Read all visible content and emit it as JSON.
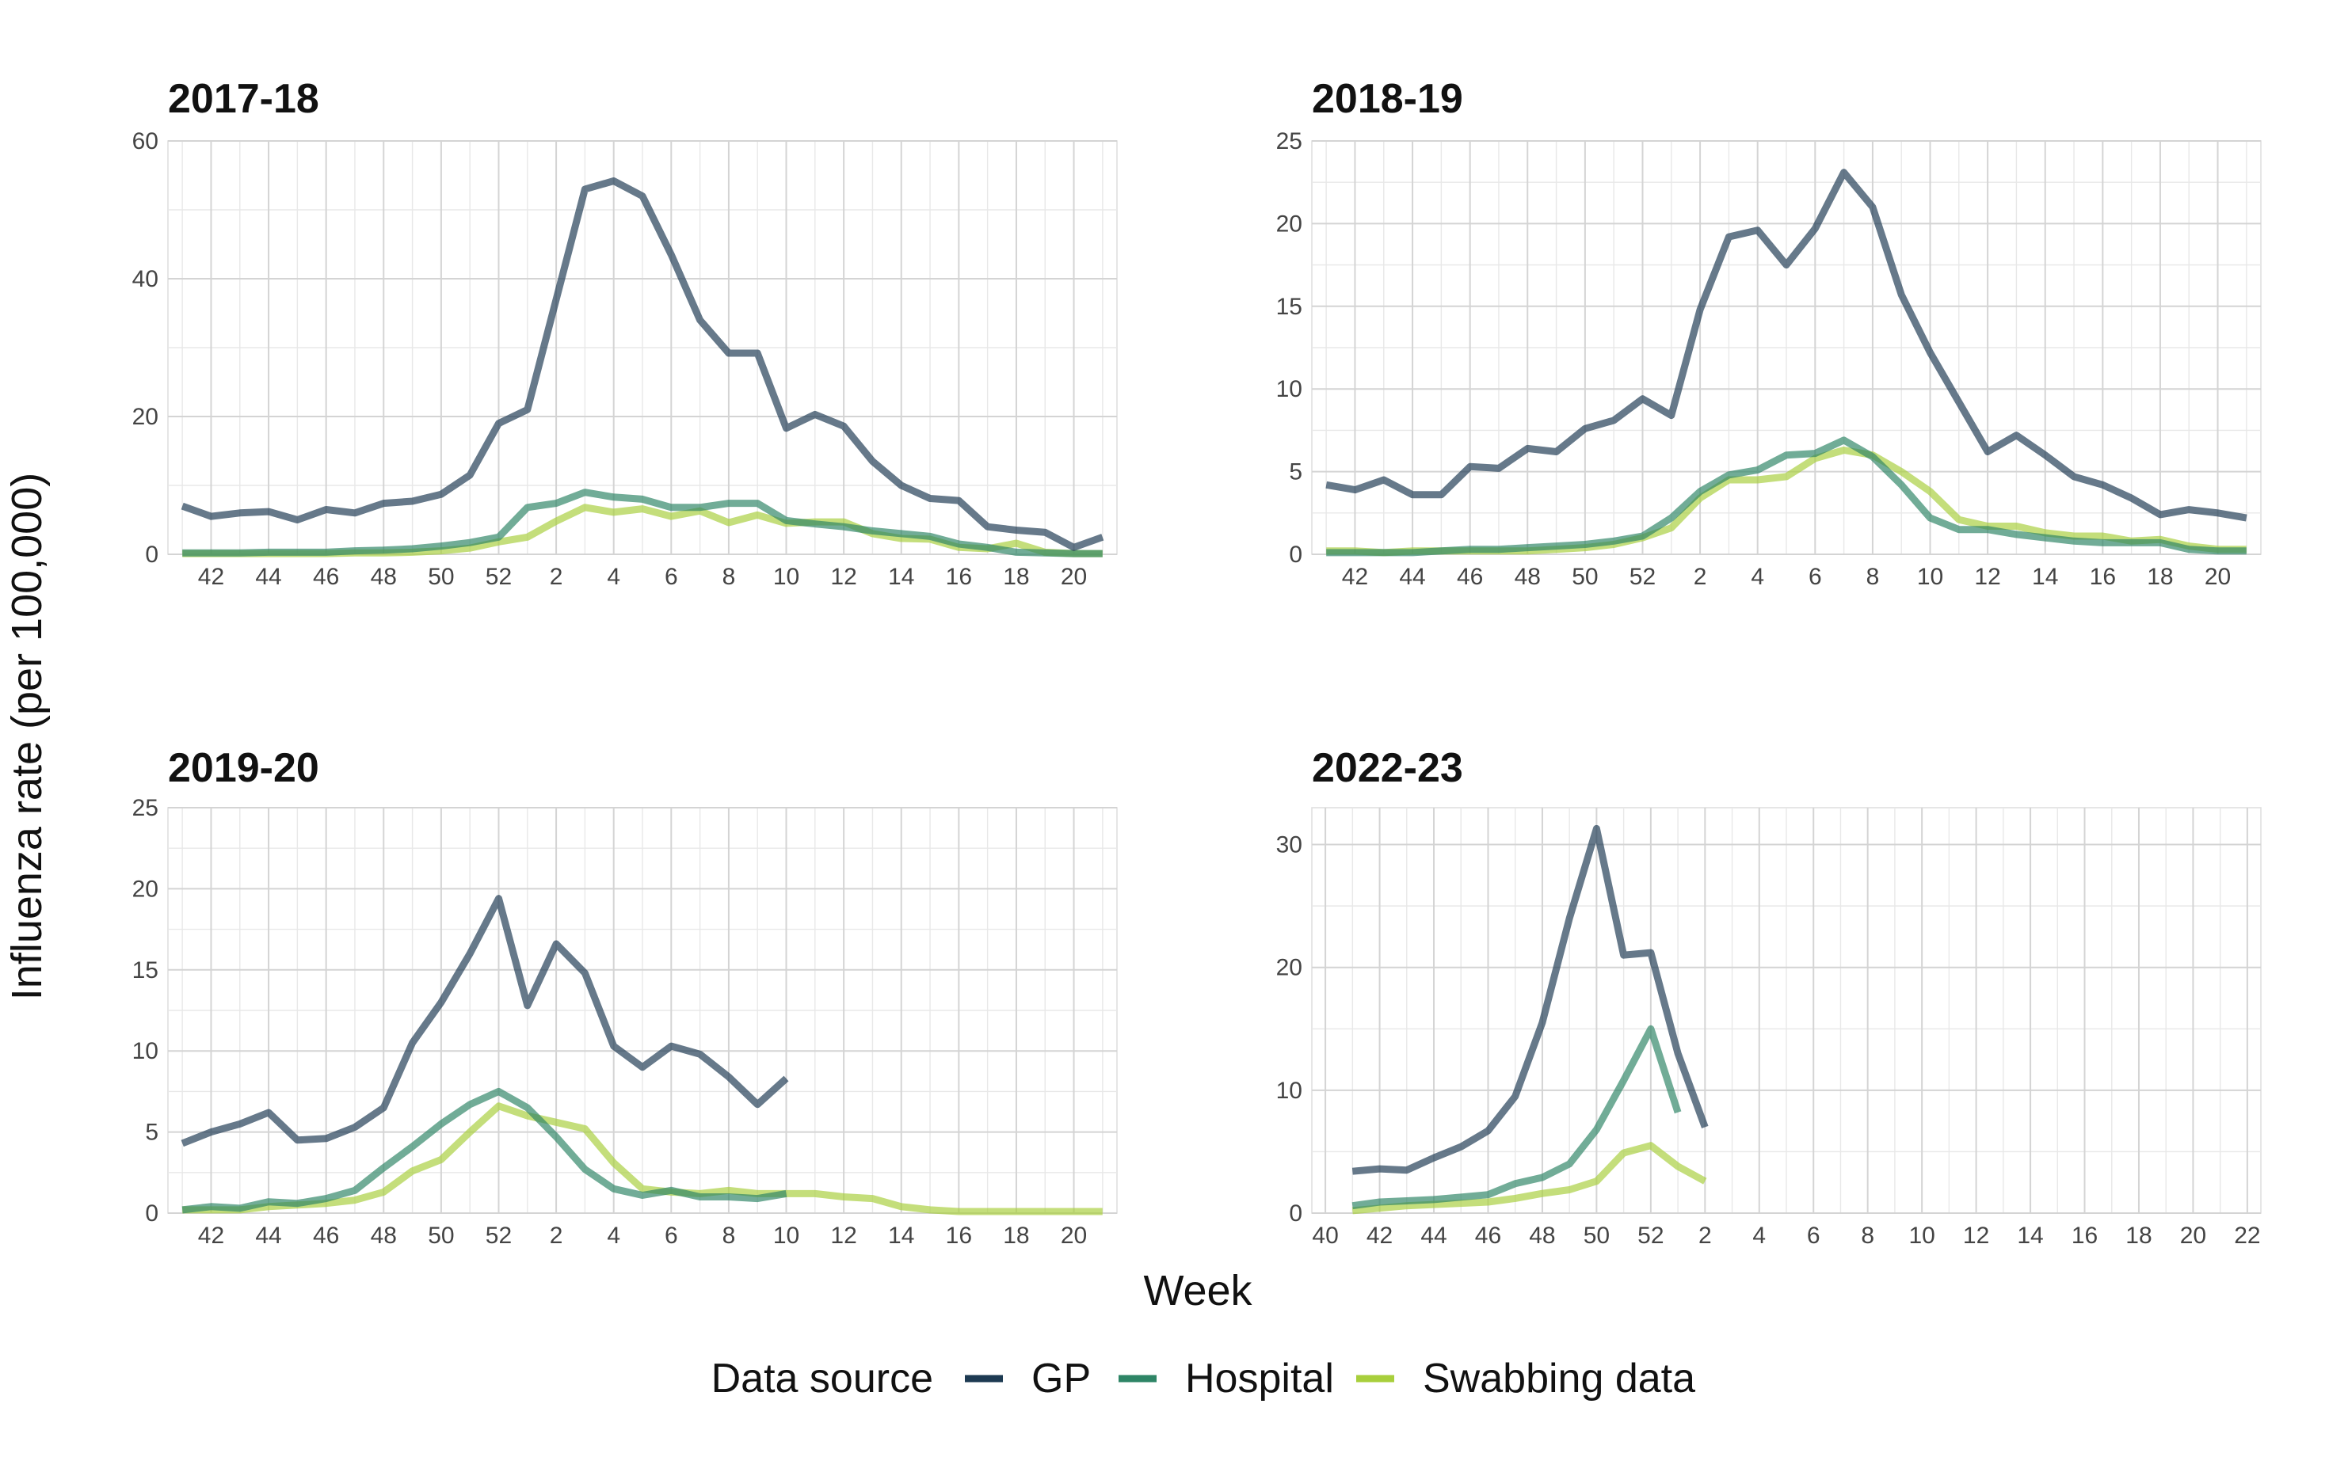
{
  "chart_data": {
    "type": "line",
    "xlabel": "Week",
    "ylabel": "Influenza rate (per 100,000)",
    "legend": {
      "title": "Data source",
      "placement": "bottom",
      "entries": [
        {
          "name": "GP",
          "color": "#1d3a52"
        },
        {
          "name": "Hospital",
          "color": "#2e8566"
        },
        {
          "name": "Swabbing data",
          "color": "#a8cf3c"
        }
      ]
    },
    "panels": [
      {
        "title": "2017-18",
        "ylim": [
          0,
          60
        ],
        "yticks": [
          0,
          20,
          40,
          60
        ],
        "xlim": [
          0.5,
          33.5
        ],
        "xtick_positions": [
          2,
          4,
          6,
          8,
          10,
          12,
          14,
          16,
          18,
          20,
          22,
          24,
          26,
          28,
          30,
          32
        ],
        "xtick_labels": [
          "42",
          "44",
          "46",
          "48",
          "50",
          "52",
          "2",
          "4",
          "6",
          "8",
          "10",
          "12",
          "14",
          "16",
          "18",
          "20"
        ],
        "series": [
          {
            "name": "GP",
            "x": [
              1,
              2,
              3,
              4,
              5,
              6,
              7,
              8,
              9,
              10,
              11,
              12,
              13,
              14,
              15,
              16,
              17,
              18,
              19,
              20,
              21,
              22,
              23,
              24,
              25,
              26,
              27,
              28,
              29,
              30,
              31,
              32,
              33
            ],
            "values": [
              7,
              5.5,
              6,
              6.2,
              5,
              6.5,
              6,
              7.4,
              7.7,
              8.7,
              11.5,
              19,
              21,
              37,
              53,
              54.2,
              52,
              43.5,
              34,
              29.2,
              29.2,
              18.3,
              20.3,
              18.6,
              13.5,
              10,
              8.1,
              7.8,
              4,
              3.5,
              3.2,
              1,
              2.5
            ]
          },
          {
            "name": "Hospital",
            "x": [
              1,
              2,
              3,
              4,
              5,
              6,
              7,
              8,
              9,
              10,
              11,
              12,
              13,
              14,
              15,
              16,
              17,
              18,
              19,
              20,
              21,
              22,
              23,
              24,
              25,
              26,
              27,
              28,
              29,
              30,
              31,
              32,
              33
            ],
            "values": [
              0.2,
              0.2,
              0.2,
              0.3,
              0.3,
              0.3,
              0.5,
              0.6,
              0.8,
              1.2,
              1.7,
              2.5,
              6.8,
              7.4,
              9,
              8.3,
              8,
              6.8,
              6.8,
              7.4,
              7.4,
              4.9,
              4.4,
              4,
              3.4,
              3,
              2.6,
              1.5,
              1,
              0.3,
              0.2,
              0.1,
              0.1
            ]
          },
          {
            "name": "Swabbing data",
            "x": [
              1,
              2,
              3,
              4,
              5,
              6,
              7,
              8,
              9,
              10,
              11,
              12,
              13,
              14,
              15,
              16,
              17,
              18,
              19,
              20,
              21,
              22,
              23,
              24,
              25,
              26,
              27,
              28,
              29,
              30,
              31,
              32,
              33
            ],
            "values": [
              0.1,
              0.1,
              0.1,
              0.1,
              0.1,
              0.1,
              0.2,
              0.2,
              0.3,
              0.5,
              0.9,
              1.8,
              2.5,
              4.8,
              6.8,
              6.1,
              6.6,
              5.5,
              6.3,
              4.6,
              5.7,
              4.5,
              4.7,
              4.7,
              3,
              2.3,
              2.2,
              1,
              0.8,
              1.6,
              0.3,
              0.1,
              0.1
            ]
          }
        ]
      },
      {
        "title": "2018-19",
        "ylim": [
          0,
          25
        ],
        "yticks": [
          0,
          5,
          10,
          15,
          20,
          25
        ],
        "xlim": [
          0.5,
          33.5
        ],
        "xtick_positions": [
          2,
          4,
          6,
          8,
          10,
          12,
          14,
          16,
          18,
          20,
          22,
          24,
          26,
          28,
          30,
          32
        ],
        "xtick_labels": [
          "42",
          "44",
          "46",
          "48",
          "50",
          "52",
          "2",
          "4",
          "6",
          "8",
          "10",
          "12",
          "14",
          "16",
          "18",
          "20"
        ],
        "series": [
          {
            "name": "GP",
            "x": [
              1,
              2,
              3,
              4,
              5,
              6,
              7,
              8,
              9,
              10,
              11,
              12,
              13,
              14,
              15,
              16,
              17,
              18,
              19,
              20,
              21,
              22,
              23,
              24,
              25,
              26,
              27,
              28,
              29,
              30,
              31,
              32,
              33
            ],
            "values": [
              4.2,
              3.9,
              4.5,
              3.6,
              3.6,
              5.3,
              5.2,
              6.4,
              6.2,
              7.6,
              8.1,
              9.4,
              8.4,
              14.8,
              19.2,
              19.6,
              17.5,
              19.7,
              23.1,
              21,
              15.7,
              12.2,
              9.2,
              6.2,
              7.2,
              6,
              4.7,
              4.2,
              3.4,
              2.4,
              2.7,
              2.5,
              2.2
            ]
          },
          {
            "name": "Hospital",
            "x": [
              1,
              2,
              3,
              4,
              5,
              6,
              7,
              8,
              9,
              10,
              11,
              12,
              13,
              14,
              15,
              16,
              17,
              18,
              19,
              20,
              21,
              22,
              23,
              24,
              25,
              26,
              27,
              28,
              29,
              30,
              31,
              32,
              33
            ],
            "values": [
              0.1,
              0.1,
              0.1,
              0.1,
              0.2,
              0.3,
              0.3,
              0.4,
              0.5,
              0.6,
              0.8,
              1.1,
              2.2,
              3.8,
              4.8,
              5.1,
              6,
              6.1,
              6.9,
              5.9,
              4.2,
              2.2,
              1.5,
              1.5,
              1.2,
              1,
              0.8,
              0.7,
              0.7,
              0.7,
              0.3,
              0.2,
              0.2
            ]
          },
          {
            "name": "Swabbing data",
            "x": [
              1,
              2,
              3,
              4,
              5,
              6,
              7,
              8,
              9,
              10,
              11,
              12,
              13,
              14,
              15,
              16,
              17,
              18,
              19,
              20,
              21,
              22,
              23,
              24,
              25,
              26,
              27,
              28,
              29,
              30,
              31,
              32,
              33
            ],
            "values": [
              0.2,
              0.2,
              0.1,
              0.2,
              0.2,
              0.2,
              0.2,
              0.2,
              0.3,
              0.4,
              0.6,
              1,
              1.6,
              3.4,
              4.5,
              4.5,
              4.7,
              5.8,
              6.3,
              6,
              5,
              3.8,
              2.1,
              1.7,
              1.7,
              1.3,
              1.1,
              1.1,
              0.8,
              0.9,
              0.5,
              0.3,
              0.3
            ]
          }
        ]
      },
      {
        "title": "2019-20",
        "ylim": [
          0,
          25
        ],
        "yticks": [
          0,
          5,
          10,
          15,
          20,
          25
        ],
        "xlim": [
          0.5,
          33.5
        ],
        "xtick_positions": [
          2,
          4,
          6,
          8,
          10,
          12,
          14,
          16,
          18,
          20,
          22,
          24,
          26,
          28,
          30,
          32
        ],
        "xtick_labels": [
          "42",
          "44",
          "46",
          "48",
          "50",
          "52",
          "2",
          "4",
          "6",
          "8",
          "10",
          "12",
          "14",
          "16",
          "18",
          "20"
        ],
        "series": [
          {
            "name": "GP",
            "x": [
              1,
              2,
              3,
              4,
              5,
              6,
              7,
              8,
              9,
              10,
              11,
              12,
              13,
              14,
              15,
              16,
              17,
              18,
              19,
              20,
              21,
              22
            ],
            "values": [
              4.3,
              5,
              5.5,
              6.2,
              4.5,
              4.6,
              5.3,
              6.5,
              10.5,
              13,
              16,
              19.4,
              12.8,
              16.6,
              14.8,
              10.3,
              9,
              10.3,
              9.8,
              8.4,
              6.7,
              8.3
            ]
          },
          {
            "name": "Hospital",
            "x": [
              1,
              2,
              3,
              4,
              5,
              6,
              7,
              8,
              9,
              10,
              11,
              12,
              13,
              14,
              15,
              16,
              17,
              18,
              19,
              20,
              21,
              22
            ],
            "values": [
              0.2,
              0.4,
              0.3,
              0.7,
              0.6,
              0.9,
              1.4,
              2.8,
              4.1,
              5.5,
              6.7,
              7.5,
              6.5,
              4.7,
              2.7,
              1.5,
              1.1,
              1.4,
              1,
              1,
              0.9,
              1.2
            ]
          },
          {
            "name": "Swabbing data",
            "x": [
              1,
              2,
              3,
              4,
              5,
              6,
              7,
              8,
              9,
              10,
              11,
              12,
              13,
              14,
              15,
              16,
              17,
              18,
              19,
              20,
              21,
              22,
              23,
              24,
              25,
              26,
              27,
              28,
              29,
              30,
              31,
              32,
              33
            ],
            "values": [
              0.2,
              0.2,
              0.2,
              0.4,
              0.5,
              0.6,
              0.8,
              1.3,
              2.6,
              3.3,
              5,
              6.6,
              6,
              5.6,
              5.2,
              3.1,
              1.5,
              1.3,
              1.2,
              1.4,
              1.2,
              1.2,
              1.2,
              1,
              0.9,
              0.4,
              0.2,
              0.1,
              0.1,
              0.1,
              0.1,
              0.1,
              0.1
            ]
          }
        ]
      },
      {
        "title": "2022-23",
        "ylim": [
          0,
          33
        ],
        "yticks": [
          0,
          10,
          20,
          30
        ],
        "xlim": [
          0.5,
          35.5
        ],
        "xtick_positions": [
          1,
          3,
          5,
          7,
          9,
          11,
          13,
          15,
          17,
          19,
          21,
          23,
          25,
          27,
          29,
          31,
          33,
          35
        ],
        "xtick_labels": [
          "40",
          "42",
          "44",
          "46",
          "48",
          "50",
          "52",
          "2",
          "4",
          "6",
          "8",
          "10",
          "12",
          "14",
          "16",
          "18",
          "20",
          "22"
        ],
        "series": [
          {
            "name": "GP",
            "x": [
              2,
              3,
              4,
              5,
              6,
              7,
              8,
              9,
              10,
              11,
              12,
              13,
              14,
              15
            ],
            "values": [
              3.4,
              3.6,
              3.5,
              4.5,
              5.4,
              6.7,
              9.5,
              15.5,
              24,
              31.3,
              21,
              21.2,
              13,
              7
            ]
          },
          {
            "name": "Hospital",
            "x": [
              2,
              3,
              4,
              5,
              6,
              7,
              8,
              9,
              10,
              11,
              12,
              13,
              14
            ],
            "values": [
              0.6,
              0.9,
              1,
              1.1,
              1.3,
              1.5,
              2.4,
              2.9,
              4,
              6.8,
              10.8,
              15,
              8.2
            ]
          },
          {
            "name": "Swabbing data",
            "x": [
              2,
              3,
              4,
              5,
              6,
              7,
              8,
              9,
              10,
              11,
              12,
              13,
              14,
              15
            ],
            "values": [
              0.2,
              0.4,
              0.6,
              0.7,
              0.8,
              0.9,
              1.2,
              1.6,
              1.9,
              2.6,
              4.9,
              5.5,
              3.8,
              2.6
            ]
          }
        ]
      }
    ]
  }
}
